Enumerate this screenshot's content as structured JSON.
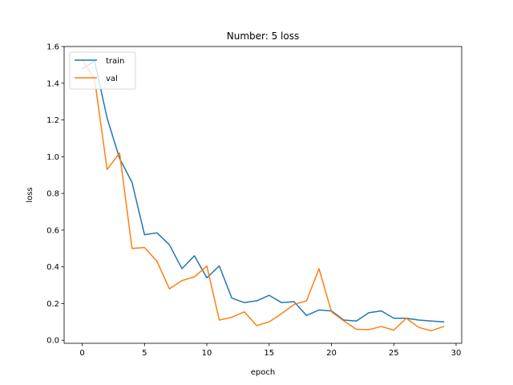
{
  "chart_data": {
    "type": "line",
    "title": "Number: 5 loss",
    "xlabel": "epoch",
    "ylabel": "loss",
    "xlim": [
      -1.45,
      30.45
    ],
    "ylim": [
      -0.0165,
      1.6
    ],
    "xticks": [
      0,
      5,
      10,
      15,
      20,
      25,
      30
    ],
    "yticks": [
      0.0,
      0.2,
      0.4,
      0.6,
      0.8,
      1.0,
      1.2,
      1.4,
      1.6
    ],
    "xtick_labels": [
      "0",
      "5",
      "10",
      "15",
      "20",
      "25",
      "30"
    ],
    "ytick_labels": [
      "0.0",
      "0.2",
      "0.4",
      "0.6",
      "0.8",
      "1.0",
      "1.2",
      "1.4",
      "1.6"
    ],
    "grid": false,
    "legend_position": "upper left",
    "x": [
      0,
      1,
      2,
      3,
      4,
      5,
      6,
      7,
      8,
      9,
      10,
      11,
      12,
      13,
      14,
      15,
      16,
      17,
      18,
      19,
      20,
      21,
      22,
      23,
      24,
      25,
      26,
      27,
      28,
      29
    ],
    "series": [
      {
        "name": "train",
        "color": "#1f77b4",
        "values": [
          1.48,
          1.52,
          1.21,
          0.99,
          0.86,
          0.575,
          0.585,
          0.52,
          0.39,
          0.46,
          0.34,
          0.405,
          0.23,
          0.205,
          0.215,
          0.245,
          0.205,
          0.21,
          0.135,
          0.165,
          0.16,
          0.11,
          0.105,
          0.15,
          0.16,
          0.12,
          0.12,
          0.11,
          0.105,
          0.1
        ]
      },
      {
        "name": "val",
        "color": "#ff7f0e",
        "values": [
          1.53,
          1.42,
          0.93,
          1.02,
          0.5,
          0.505,
          0.43,
          0.28,
          0.325,
          0.345,
          0.405,
          0.11,
          0.125,
          0.155,
          0.08,
          0.1,
          0.145,
          0.195,
          0.215,
          0.39,
          0.155,
          0.105,
          0.06,
          0.058,
          0.075,
          0.055,
          0.12,
          0.07,
          0.052,
          0.075
        ]
      }
    ]
  }
}
